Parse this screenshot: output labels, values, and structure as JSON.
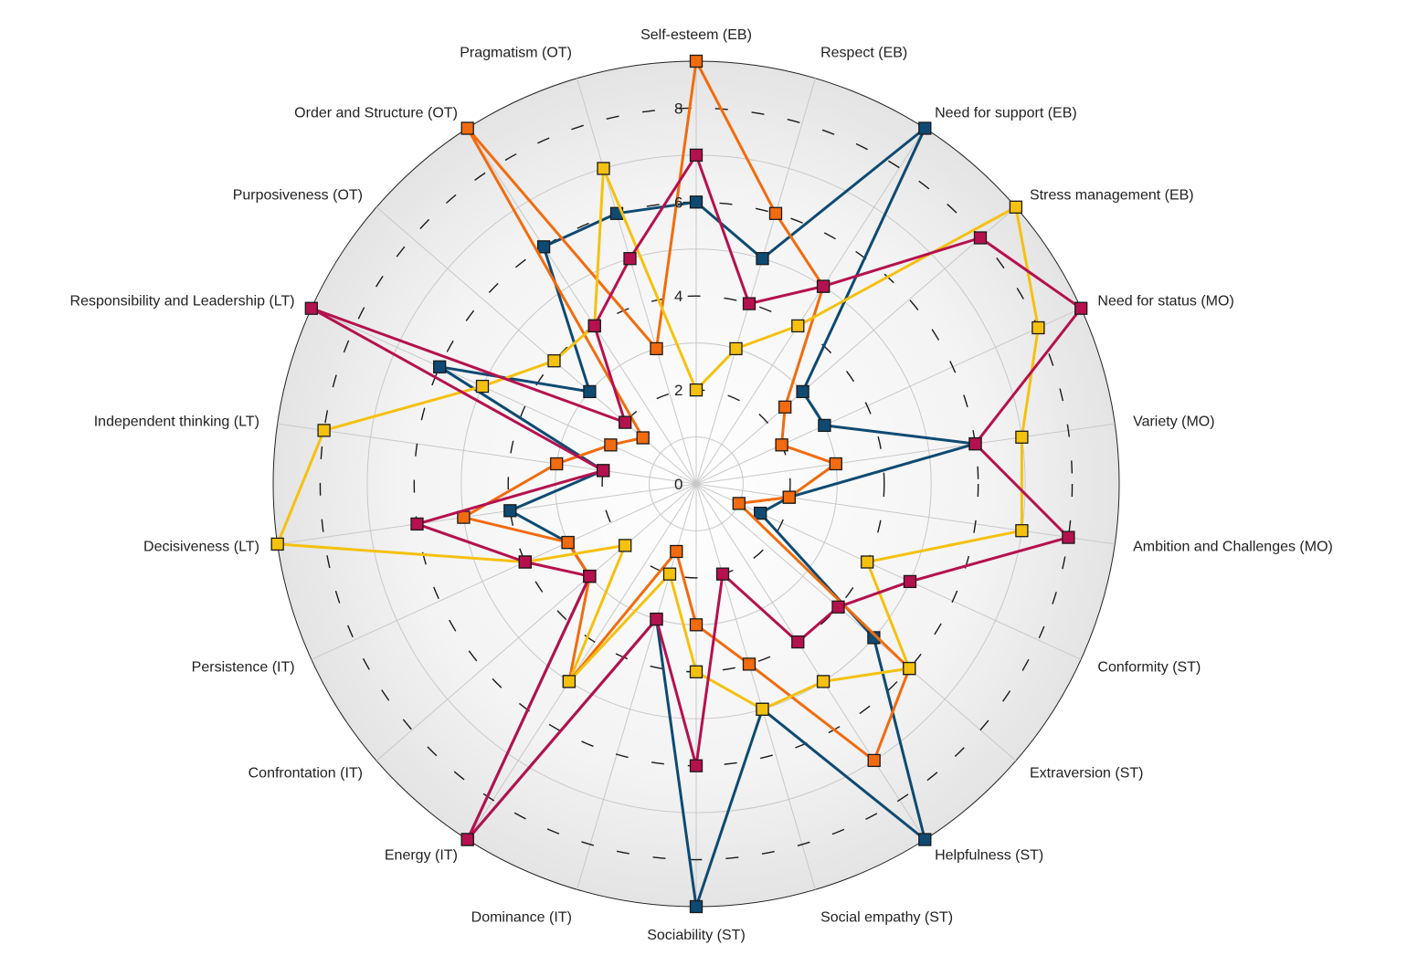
{
  "chart_data": {
    "type": "radar",
    "title": "",
    "categories": [
      "Self-esteem (EB)",
      "Respect (EB)",
      "Need for support (EB)",
      "Stress management (EB)",
      "Need for status (MO)",
      "Variety (MO)",
      "Ambition and Challenges (MO)",
      "Conformity (ST)",
      "Extraversion (ST)",
      "Helpfulness (ST)",
      "Social empathy (ST)",
      "Sociability (ST)",
      "Dominance (IT)",
      "Energy (IT)",
      "Confrontation (IT)",
      "Persistence (IT)",
      "Decisiveness (LT)",
      "Independent thinking (LT)",
      "Responsibility and Leadership (LT)",
      "Purposiveness (OT)",
      "Order and Structure (OT)",
      "Pragmatism (OT)"
    ],
    "rlim": [
      0,
      9
    ],
    "ticks": [
      0,
      2,
      4,
      6,
      8
    ],
    "tick_labels": [
      "0",
      "2",
      "4",
      "6",
      "8"
    ],
    "grid": true,
    "legend": "none",
    "series": [
      {
        "color": "#0e4a72",
        "values": [
          6,
          5,
          9,
          3,
          3,
          6,
          2,
          1.5,
          5,
          9,
          5,
          9,
          3,
          9,
          3,
          3,
          4,
          2,
          6,
          3,
          6,
          6
        ]
      },
      {
        "color": "#f26b0e",
        "values": [
          9,
          6,
          5,
          2.5,
          2,
          3,
          2,
          1,
          6,
          7,
          4,
          3,
          1.5,
          5,
          3,
          3,
          5,
          3,
          2,
          1.5,
          9,
          3
        ]
      },
      {
        "color": "#f5c10f",
        "values": [
          2,
          3,
          4,
          9,
          8,
          7,
          7,
          4,
          6,
          5,
          5,
          4,
          2,
          5,
          2,
          4,
          9,
          8,
          5,
          4,
          4,
          7
        ]
      },
      {
        "color": "#b5114e",
        "values": [
          7,
          4,
          5,
          8,
          9,
          6,
          8,
          5,
          4,
          4,
          2,
          6,
          3,
          9,
          3,
          4,
          6,
          2,
          9,
          2,
          4,
          5
        ]
      }
    ]
  }
}
